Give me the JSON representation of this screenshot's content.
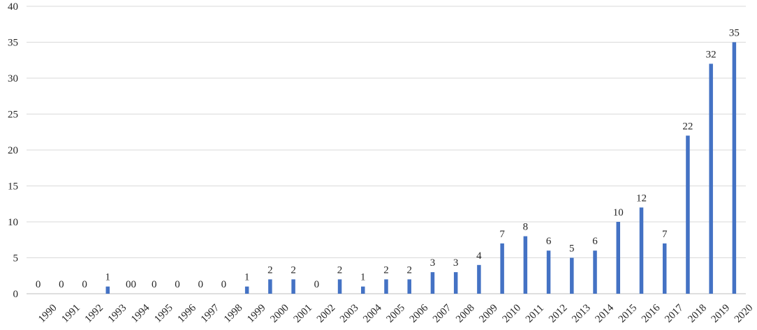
{
  "chart_data": {
    "type": "bar",
    "title": "",
    "xlabel": "",
    "ylabel": "",
    "ylim": [
      0,
      40
    ],
    "yticks": [
      0,
      5,
      10,
      15,
      20,
      25,
      30,
      35,
      40
    ],
    "grid": true,
    "legend": "none",
    "bar_color": "#4472C4",
    "grid_color": "#d9d9d9",
    "categories": [
      "1990",
      "1991",
      "1992",
      "1993",
      "1994",
      "1995",
      "1996",
      "1997",
      "1998",
      "1999",
      "2000",
      "2001",
      "2002",
      "2003",
      "2004",
      "2005",
      "2006",
      "2007",
      "2008",
      "2009",
      "2010",
      "2011",
      "2012",
      "2013",
      "2014",
      "2015",
      "2016",
      "2017",
      "2018",
      "2019",
      "2020"
    ],
    "values": [
      0,
      0,
      0,
      1,
      0,
      0,
      0,
      0,
      0,
      1,
      2,
      2,
      0,
      2,
      1,
      2,
      2,
      3,
      3,
      4,
      7,
      8,
      6,
      5,
      6,
      10,
      12,
      7,
      22,
      32,
      35
    ],
    "data_labels": [
      "0",
      "0",
      "0",
      "1",
      "00",
      "0",
      "0",
      "0",
      "0",
      "1",
      "2",
      "2",
      "0",
      "2",
      "1",
      "2",
      "2",
      "3",
      "3",
      "4",
      "7",
      "8",
      "6",
      "5",
      "6",
      "10",
      "12",
      "7",
      "22",
      "32",
      "35"
    ]
  }
}
